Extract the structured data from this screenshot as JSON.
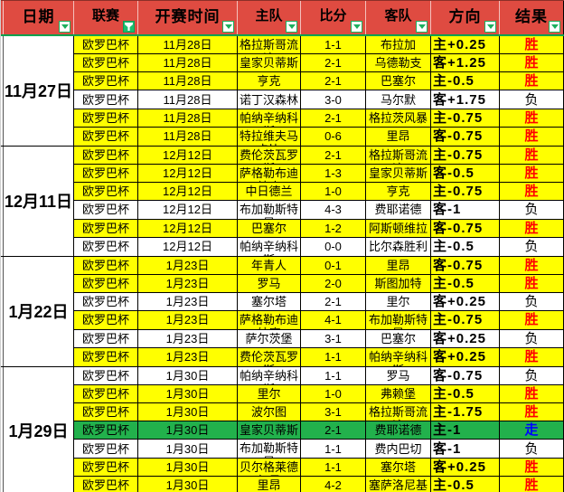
{
  "app": {
    "kind": "spreadsheet-results-table",
    "league_filter_active": true
  },
  "colors": {
    "header_bg": "#DF4B41",
    "header_text": "#000000",
    "row_yellow": "#FFFF00",
    "row_white": "#FFFFFF",
    "row_green": "#22B14C",
    "accent_green": "#1CAF5E",
    "header_underline_green": "#00A24E",
    "result_win": "#FF0000",
    "result_lose": "#000000",
    "result_draw": "#0000FF"
  },
  "header": {
    "columns": [
      {
        "id": "date",
        "label": "日期",
        "filter": "arrow",
        "emph": true
      },
      {
        "id": "league",
        "label": "联赛",
        "filter": "funnel",
        "emph": false
      },
      {
        "id": "time",
        "label": "开赛时间",
        "filter": "arrow",
        "emph": true
      },
      {
        "id": "home",
        "label": "主队",
        "filter": "arrow",
        "emph": false
      },
      {
        "id": "score",
        "label": "比分",
        "filter": "arrow",
        "emph": false
      },
      {
        "id": "away",
        "label": "客队",
        "filter": "arrow",
        "emph": false
      },
      {
        "id": "direction",
        "label": "方向",
        "filter": "arrow",
        "emph": true
      },
      {
        "id": "result",
        "label": "结果",
        "filter": "arrow",
        "emph": true
      }
    ]
  },
  "groups": [
    {
      "date": "11月27日",
      "matches": [
        {
          "league": "欧罗巴杯",
          "time": "11月28日",
          "home": "格拉斯哥流浪",
          "score": "1-1",
          "away": "布拉加",
          "direction": "主+0.25",
          "result": "胜",
          "bg": "yellow"
        },
        {
          "league": "欧罗巴杯",
          "time": "11月28日",
          "home": "皇家贝蒂斯",
          "score": "2-1",
          "away": "乌德勒支",
          "direction": "客+1.25",
          "result": "胜",
          "bg": "yellow"
        },
        {
          "league": "欧罗巴杯",
          "time": "11月28日",
          "home": "亨克",
          "score": "2-1",
          "away": "巴塞尔",
          "direction": "主-0.5",
          "result": "胜",
          "bg": "yellow"
        },
        {
          "league": "欧罗巴杯",
          "time": "11月28日",
          "home": "诺丁汉森林",
          "score": "3-0",
          "away": "马尔默",
          "direction": "客+1.75",
          "result": "负",
          "bg": "white"
        },
        {
          "league": "欧罗巴杯",
          "time": "11月28日",
          "home": "帕纳辛纳科斯",
          "score": "2-1",
          "away": "格拉茨风暴",
          "direction": "主-0.75",
          "result": "胜",
          "bg": "yellow"
        },
        {
          "league": "欧罗巴杯",
          "time": "11月28日",
          "home": "特拉维夫马卡比",
          "score": "0-6",
          "away": "里昂",
          "direction": "客-0.75",
          "result": "胜",
          "bg": "yellow"
        }
      ]
    },
    {
      "date": "12月11日",
      "matches": [
        {
          "league": "欧罗巴杯",
          "time": "12月12日",
          "home": "费伦茨瓦罗斯",
          "score": "2-1",
          "away": "格拉斯哥流浪",
          "direction": "主-0.75",
          "result": "胜",
          "bg": "yellow"
        },
        {
          "league": "欧罗巴杯",
          "time": "12月12日",
          "home": "萨格勒布迪纳摩",
          "score": "1-3",
          "away": "皇家贝蒂斯",
          "direction": "客-0.5",
          "result": "胜",
          "bg": "yellow"
        },
        {
          "league": "欧罗巴杯",
          "time": "12月12日",
          "home": "中日德兰",
          "score": "1-0",
          "away": "亨克",
          "direction": "主-0.75",
          "result": "胜",
          "bg": "yellow"
        },
        {
          "league": "欧罗巴杯",
          "time": "12月12日",
          "home": "布加勒斯特星",
          "score": "4-3",
          "away": "费耶诺德",
          "direction": "客-1",
          "result": "负",
          "bg": "white"
        },
        {
          "league": "欧罗巴杯",
          "time": "12月12日",
          "home": "巴塞尔",
          "score": "1-2",
          "away": "阿斯顿维拉",
          "direction": "客-0.75",
          "result": "胜",
          "bg": "yellow"
        },
        {
          "league": "欧罗巴杯",
          "time": "12月12日",
          "home": "帕纳辛纳科斯",
          "score": "0-0",
          "away": "比尔森胜利",
          "direction": "主-0.5",
          "result": "负",
          "bg": "white"
        }
      ]
    },
    {
      "date": "1月22日",
      "matches": [
        {
          "league": "欧罗巴杯",
          "time": "1月23日",
          "home": "年青人",
          "score": "0-1",
          "away": "里昂",
          "direction": "客-0.75",
          "result": "胜",
          "bg": "yellow"
        },
        {
          "league": "欧罗巴杯",
          "time": "1月23日",
          "home": "罗马",
          "score": "2-0",
          "away": "斯图加特",
          "direction": "主-0.5",
          "result": "胜",
          "bg": "yellow"
        },
        {
          "league": "欧罗巴杯",
          "time": "1月23日",
          "home": "塞尔塔",
          "score": "2-1",
          "away": "里尔",
          "direction": "客+0.25",
          "result": "负",
          "bg": "white"
        },
        {
          "league": "欧罗巴杯",
          "time": "1月23日",
          "home": "萨格勒布迪纳摩",
          "score": "4-1",
          "away": "布加勒斯特星",
          "direction": "主-0.75",
          "result": "胜",
          "bg": "yellow"
        },
        {
          "league": "欧罗巴杯",
          "time": "1月23日",
          "home": "萨尔茨堡",
          "score": "3-1",
          "away": "巴塞尔",
          "direction": "客+0.25",
          "result": "负",
          "bg": "white"
        },
        {
          "league": "欧罗巴杯",
          "time": "1月23日",
          "home": "费伦茨瓦罗斯",
          "score": "1-1",
          "away": "帕纳辛纳科斯",
          "direction": "客+0.25",
          "result": "胜",
          "bg": "yellow"
        }
      ]
    },
    {
      "date": "1月29日",
      "matches": [
        {
          "league": "欧罗巴杯",
          "time": "1月30日",
          "home": "帕纳辛纳科斯",
          "score": "1-1",
          "away": "罗马",
          "direction": "客-0.75",
          "result": "负",
          "bg": "white"
        },
        {
          "league": "欧罗巴杯",
          "time": "1月30日",
          "home": "里尔",
          "score": "1-0",
          "away": "弗赖堡",
          "direction": "主-0.5",
          "result": "胜",
          "bg": "yellow"
        },
        {
          "league": "欧罗巴杯",
          "time": "1月30日",
          "home": "波尔图",
          "score": "3-1",
          "away": "格拉斯哥流浪",
          "direction": "主-1.75",
          "result": "胜",
          "bg": "yellow"
        },
        {
          "league": "欧罗巴杯",
          "time": "1月30日",
          "home": "皇家贝蒂斯",
          "score": "2-1",
          "away": "费耶诺德",
          "direction": "主-1",
          "result": "走",
          "bg": "green"
        },
        {
          "league": "欧罗巴杯",
          "time": "1月30日",
          "home": "布加勒斯特星",
          "score": "1-1",
          "away": "费内巴切",
          "direction": "客-1",
          "result": "负",
          "bg": "white"
        },
        {
          "league": "欧罗巴杯",
          "time": "1月30日",
          "home": "贝尔格莱德红星",
          "score": "1-1",
          "away": "塞尔塔",
          "direction": "客+0.25",
          "result": "胜",
          "bg": "yellow"
        },
        {
          "league": "欧罗巴杯",
          "time": "1月30日",
          "home": "里昂",
          "score": "4-2",
          "away": "塞萨洛尼基",
          "direction": "主-0.5",
          "result": "胜",
          "bg": "yellow"
        }
      ]
    }
  ]
}
